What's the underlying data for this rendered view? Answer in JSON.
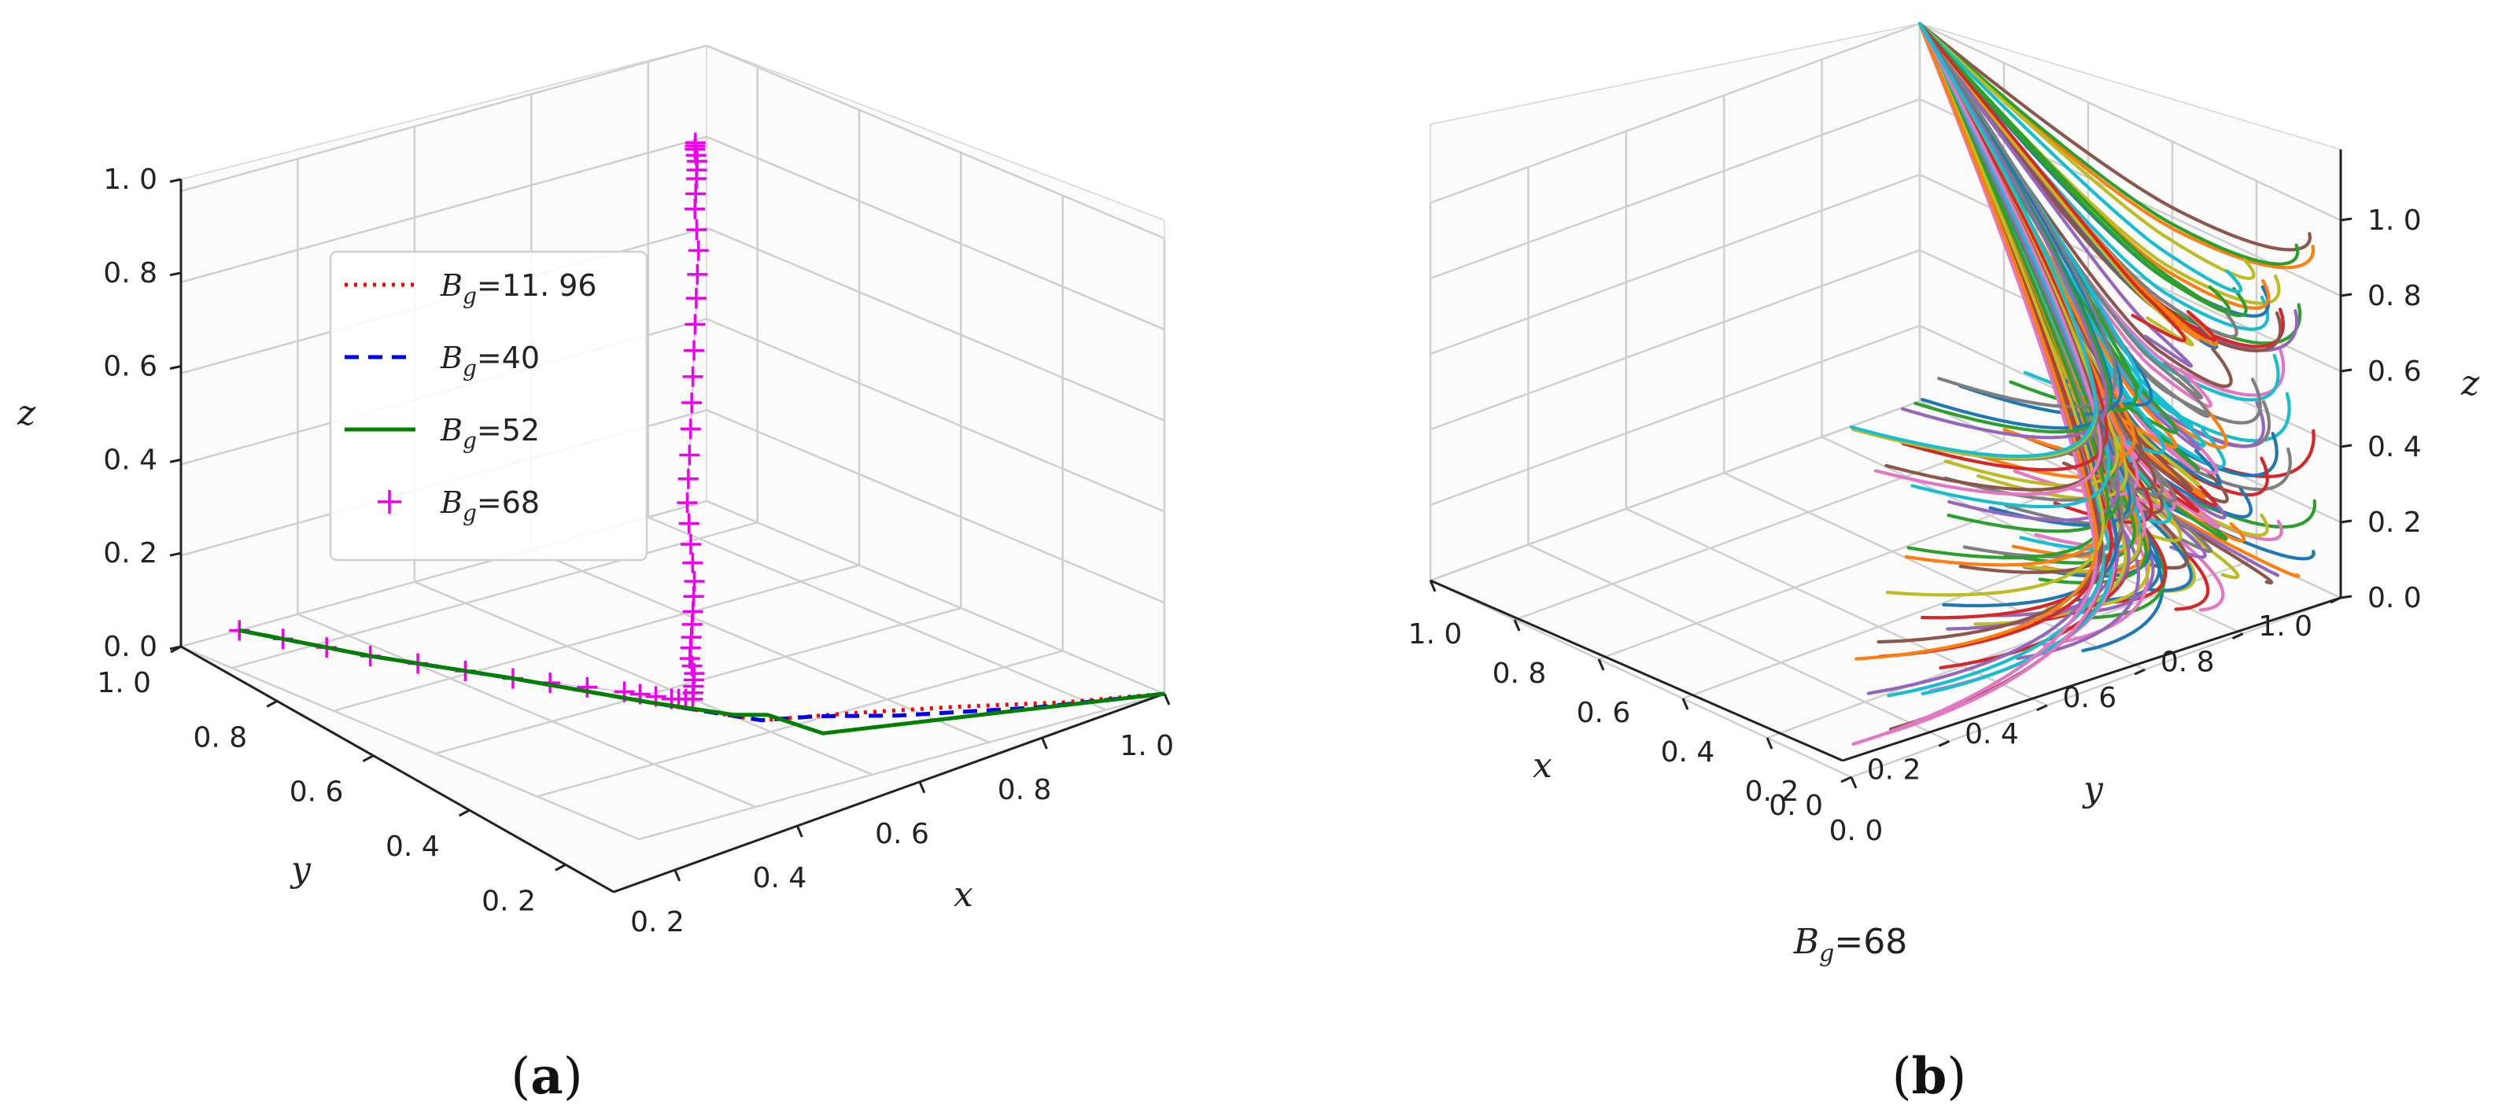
{
  "chart_data": [
    {
      "id": "a",
      "type": "line3d",
      "caption": "(a)",
      "caption_letter": "a",
      "xlabel": "x",
      "ylabel": "y",
      "zlabel": "z",
      "xlim": [
        0.1,
        1.0
      ],
      "ylim": [
        0.1,
        1.0
      ],
      "zlim": [
        0.0,
        1.0
      ],
      "x_ticks": [
        "0. 2",
        "0. 4",
        "0. 6",
        "0. 8",
        "1. 0"
      ],
      "y_ticks": [
        "0. 2",
        "0. 4",
        "0. 6",
        "0. 8",
        "1. 0"
      ],
      "z_ticks": [
        "0. 0",
        "0. 2",
        "0. 4",
        "0. 6",
        "0. 8",
        "1. 0"
      ],
      "grid": true,
      "legend_position": "upper-left",
      "series": [
        {
          "name": "11. 96",
          "legend_prefix": "B",
          "legend_sub": "g",
          "color": "#ff0000",
          "style": "dotted",
          "points": [
            [
              0.1,
              0.9,
              0.0
            ],
            [
              0.3,
              0.85,
              0.02
            ],
            [
              0.5,
              0.78,
              0.04
            ],
            [
              0.7,
              0.72,
              0.06
            ],
            [
              0.85,
              0.66,
              0.07
            ],
            [
              0.9,
              0.55,
              0.07
            ],
            [
              0.94,
              0.4,
              0.05
            ],
            [
              0.97,
              0.25,
              0.02
            ],
            [
              1.0,
              0.1,
              0.0
            ]
          ]
        },
        {
          "name": "40",
          "legend_prefix": "B",
          "legend_sub": "g",
          "color": "#0000ee",
          "style": "dashed",
          "points": [
            [
              0.1,
              0.9,
              0.0
            ],
            [
              0.3,
              0.85,
              0.02
            ],
            [
              0.5,
              0.78,
              0.04
            ],
            [
              0.7,
              0.72,
              0.06
            ],
            [
              0.85,
              0.66,
              0.07
            ],
            [
              0.87,
              0.58,
              0.06
            ],
            [
              0.88,
              0.45,
              0.02
            ],
            [
              0.95,
              0.28,
              0.01
            ],
            [
              1.0,
              0.1,
              0.0
            ]
          ]
        },
        {
          "name": "52",
          "legend_prefix": "B",
          "legend_sub": "g",
          "color": "#008000",
          "style": "solid",
          "points": [
            [
              0.1,
              0.9,
              0.0
            ],
            [
              0.3,
              0.85,
              0.02
            ],
            [
              0.5,
              0.78,
              0.04
            ],
            [
              0.7,
              0.72,
              0.06
            ],
            [
              0.82,
              0.68,
              0.075
            ],
            [
              0.84,
              0.64,
              0.07
            ],
            [
              0.845,
              0.55,
              0.0
            ],
            [
              0.93,
              0.3,
              0.0
            ],
            [
              1.0,
              0.1,
              0.0
            ]
          ]
        },
        {
          "name": "68",
          "legend_prefix": "B",
          "legend_sub": "g",
          "color": "#ee00ee",
          "style": "plus-markers",
          "points": [
            [
              0.1,
              0.9,
              0.0
            ],
            [
              0.3,
              0.85,
              0.02
            ],
            [
              0.5,
              0.78,
              0.04
            ],
            [
              0.65,
              0.72,
              0.06
            ],
            [
              0.72,
              0.7,
              0.07
            ],
            [
              0.75,
              0.69,
              0.08
            ],
            [
              0.74,
              0.68,
              0.1
            ],
            [
              0.73,
              0.67,
              0.12
            ],
            [
              0.71,
              0.66,
              0.14
            ],
            [
              0.69,
              0.64,
              0.17
            ],
            [
              0.67,
              0.62,
              0.21
            ],
            [
              0.65,
              0.6,
              0.26
            ],
            [
              0.62,
              0.58,
              0.32
            ],
            [
              0.59,
              0.56,
              0.39
            ],
            [
              0.56,
              0.53,
              0.47
            ],
            [
              0.53,
              0.5,
              0.56
            ],
            [
              0.5,
              0.47,
              0.65
            ],
            [
              0.47,
              0.44,
              0.74
            ],
            [
              0.44,
              0.41,
              0.82
            ],
            [
              0.41,
              0.39,
              0.89
            ],
            [
              0.39,
              0.37,
              0.94
            ],
            [
              0.38,
              0.36,
              0.97
            ],
            [
              0.37,
              0.355,
              0.99
            ],
            [
              0.365,
              0.35,
              1.0
            ]
          ]
        }
      ]
    },
    {
      "id": "b",
      "type": "line3d",
      "caption": "(b)",
      "caption_letter": "b",
      "xlabel": "x",
      "ylabel": "y",
      "zlabel": "z",
      "xlim": [
        0.0,
        1.0
      ],
      "ylim": [
        0.0,
        1.0
      ],
      "zlim": [
        0.0,
        1.0
      ],
      "x_ticks": [
        "0. 0",
        "0. 2",
        "0. 4",
        "0. 6",
        "0. 8",
        "1. 0"
      ],
      "y_ticks": [
        "0. 0",
        "0. 2",
        "0. 4",
        "0. 6",
        "0. 8",
        "1. 0"
      ],
      "z_ticks": [
        "0. 0",
        "0. 2",
        "0. 4",
        "0. 6",
        "0. 8",
        "1. 0"
      ],
      "grid": true,
      "subtitle_prefix": "B",
      "subtitle_sub": "g",
      "subtitle_value": "=68",
      "note": "many trajectories from different initial values converging to (1, 1, 1)",
      "palette": [
        "#1f77b4",
        "#ff7f0e",
        "#2ca02c",
        "#d62728",
        "#9467bd",
        "#8c564b",
        "#e377c2",
        "#7f7f7f",
        "#bcbd22",
        "#17becf"
      ]
    }
  ]
}
